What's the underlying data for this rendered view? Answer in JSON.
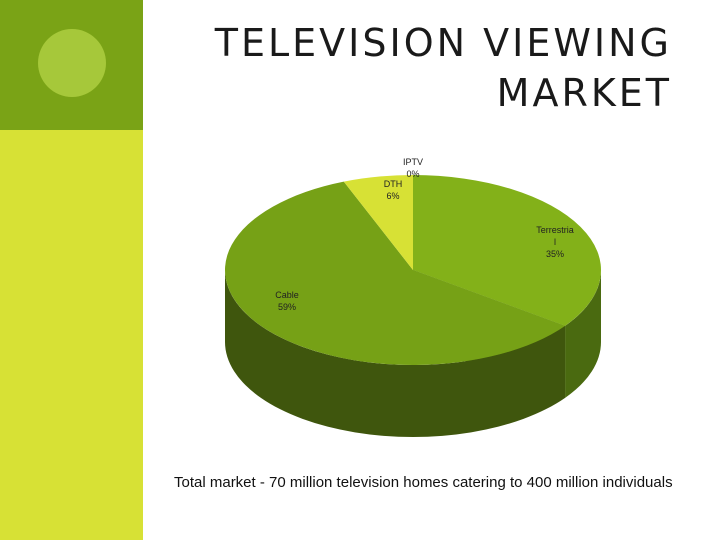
{
  "slide": {
    "title_lines": [
      "TELEVISION VIEWING",
      "MARKET"
    ],
    "caption": "Total market - 70 million television homes catering to 400 million individuals"
  },
  "colors": {
    "left_band": "#d7e135",
    "corner_block": "#7aa316",
    "circle": "#a6c83a"
  },
  "chart_data": {
    "type": "pie",
    "style": "3d",
    "slices": [
      {
        "label_lines": [
          "Terrestria",
          "l",
          "35%"
        ],
        "value": 35,
        "color": "#83b119",
        "side": "#4a6a10"
      },
      {
        "label_lines": [
          "Cable",
          "59%"
        ],
        "value": 59,
        "color": "#76a116",
        "side": "#3f560d"
      },
      {
        "label_lines": [
          "DTH",
          "6%"
        ],
        "value": 6,
        "color": "#d7e135",
        "side": "#9aa224"
      },
      {
        "label_lines": [
          "IPTV",
          "0%"
        ],
        "value": 0,
        "color": "#f2f7a0",
        "side": "#b8bf50"
      }
    ]
  }
}
